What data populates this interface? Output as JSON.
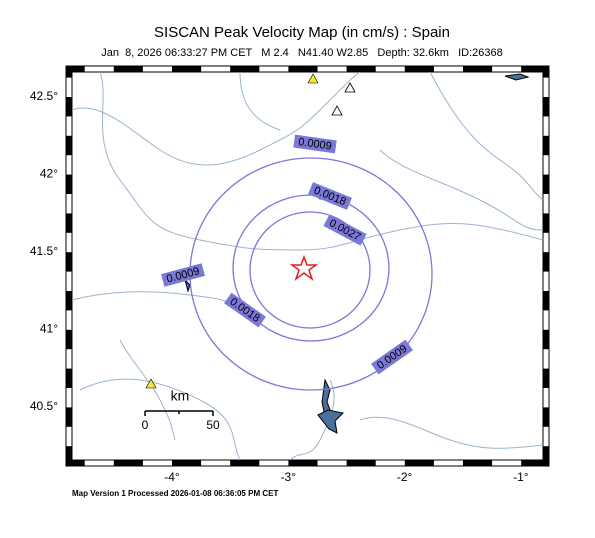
{
  "header": {
    "title": "SISCAN Peak Velocity Map (in cm/s) : Spain",
    "subtitle": "Jan  8, 2026 06:33:27 PM CET   M 2.4   N41.40 W2.85   Depth: 32.6km   ID:26368"
  },
  "axes": {
    "lat_labels": [
      "42.5°",
      "42°",
      "41.5°",
      "41°",
      "40.5°"
    ],
    "lon_labels": [
      "-4°",
      "-3°",
      "-2°",
      "-1°"
    ]
  },
  "contours": {
    "labels": [
      "0.0009",
      "0.0018",
      "0.0027",
      "0.0009",
      "0.0018",
      "0.0009"
    ]
  },
  "scale_bar": {
    "unit": "km",
    "start": "0",
    "end": "50"
  },
  "footer": "Map Version 1 Processed 2026-01-08 06:36:05 PM CET"
}
